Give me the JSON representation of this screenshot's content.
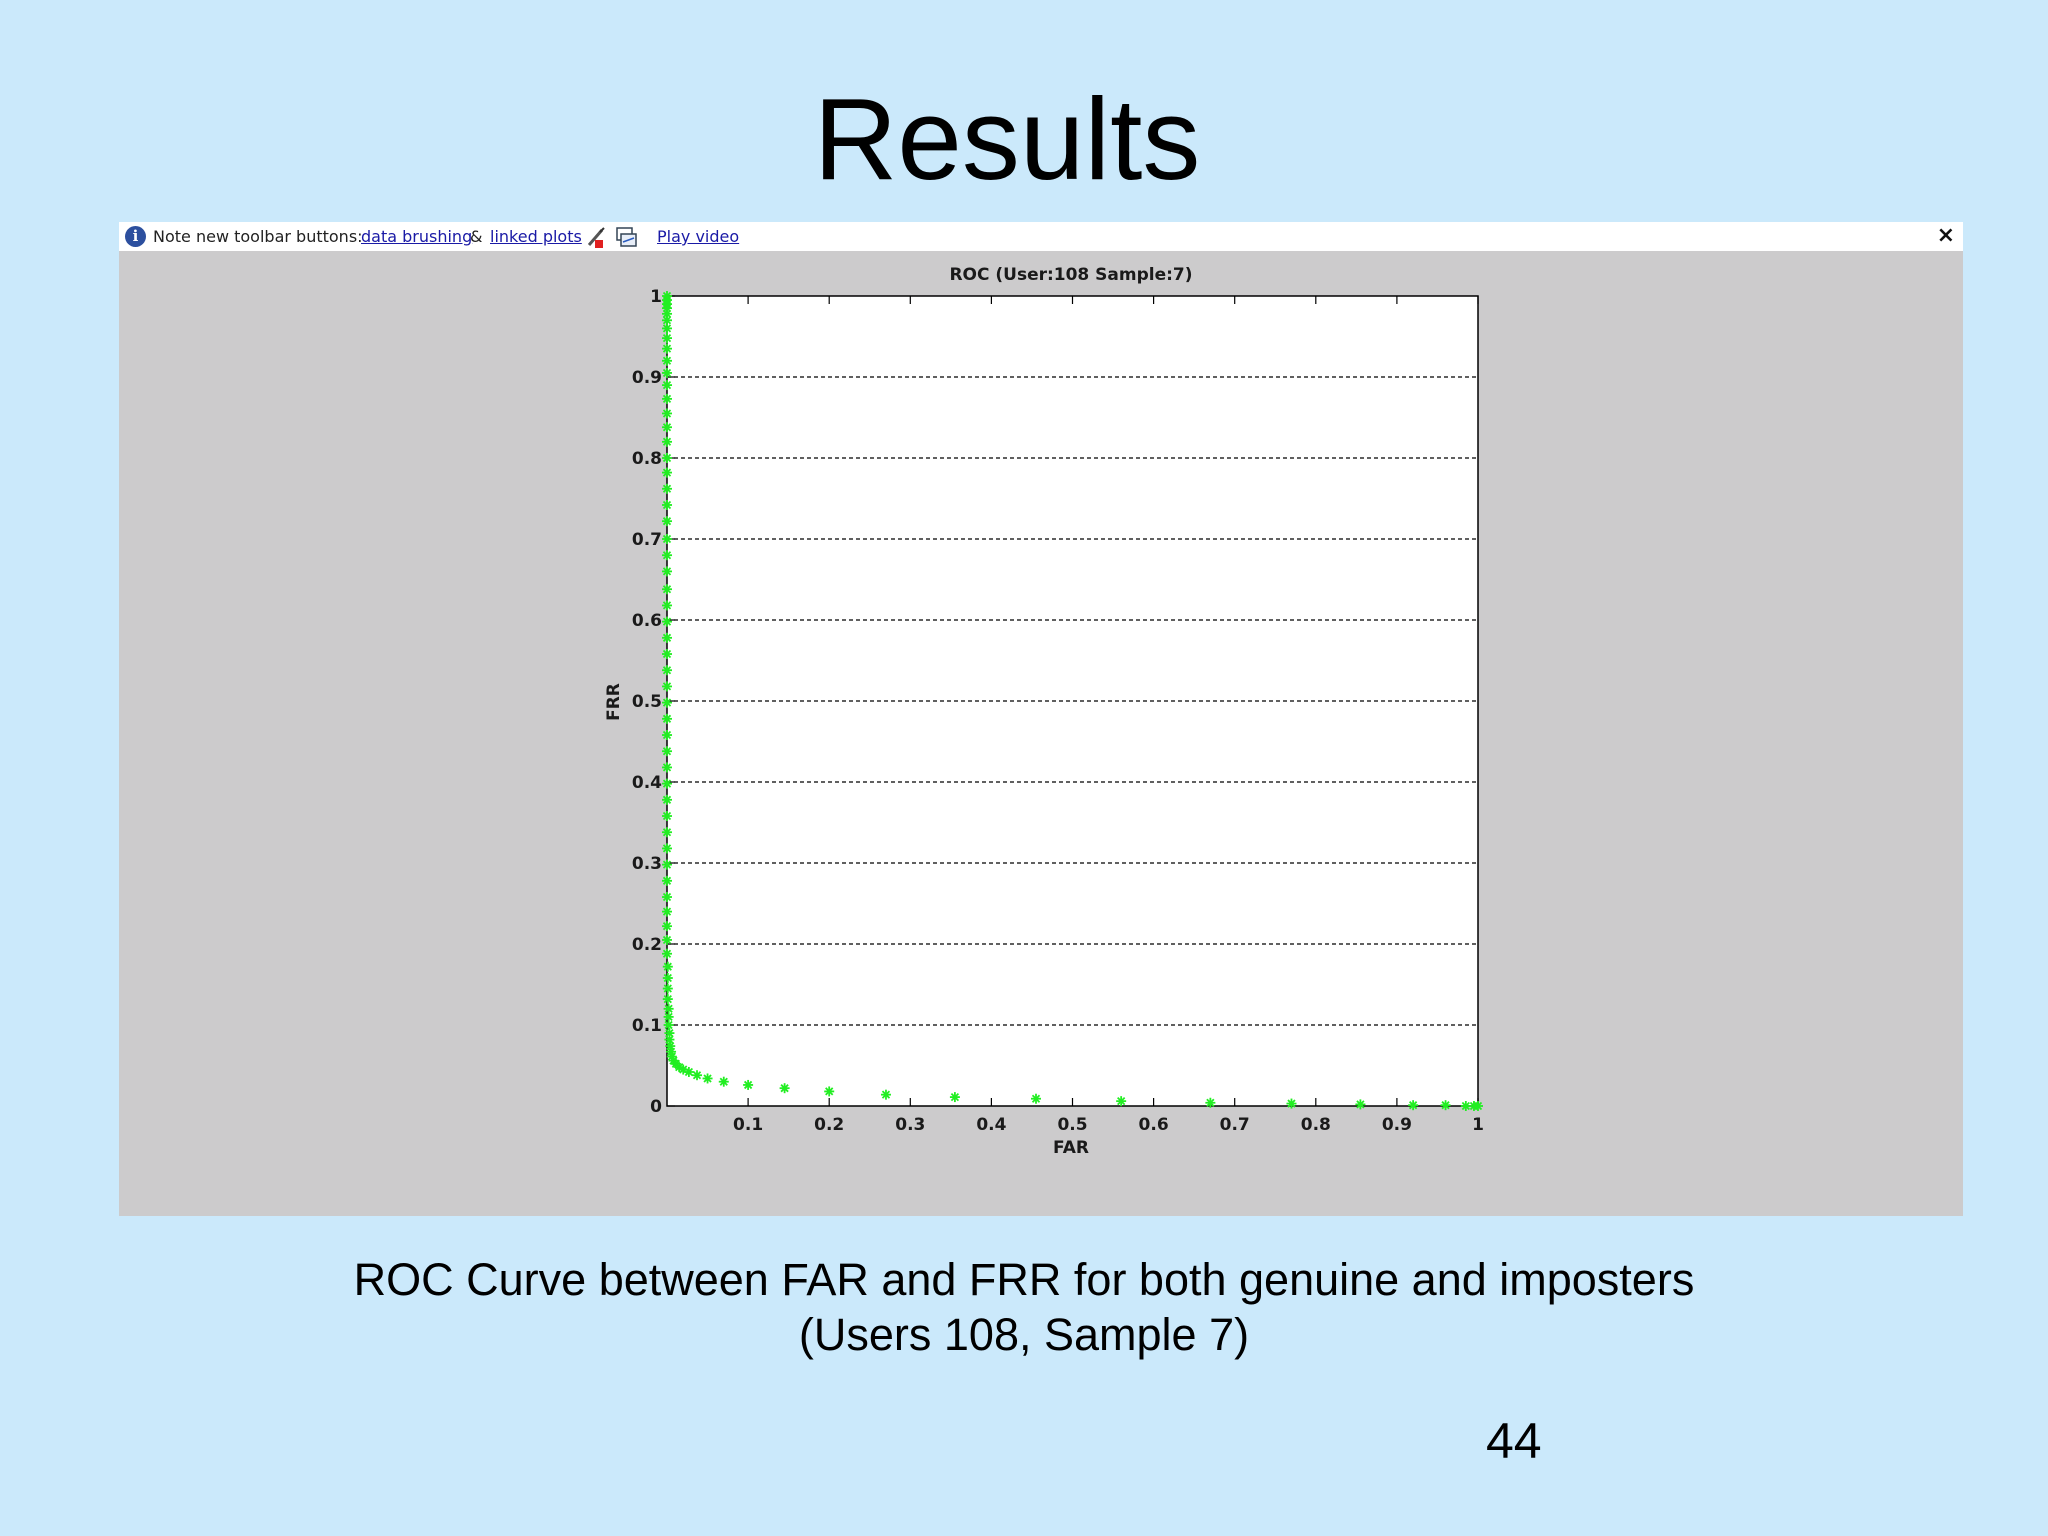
{
  "slide": {
    "title": "Results",
    "caption_line1": "ROC Curve between FAR and FRR for both genuine and imposters",
    "caption_line2": "(Users 108, Sample 7)",
    "page_number": "44"
  },
  "toolbar": {
    "note_text": "Note new toolbar buttons:",
    "link_data_brushing": "data brushing",
    "ampersand": "&",
    "link_linked_plots": "linked plots",
    "link_play_video": "Play video",
    "close_symbol": "×"
  },
  "colors": {
    "slide_background": "#cbe9fb",
    "figure_background": "#cccbcc",
    "marker": "#22ee22"
  },
  "chart_data": {
    "type": "scatter",
    "title": "ROC (User:108 Sample:7)",
    "xlabel": "FAR",
    "ylabel": "FRR",
    "xlim": [
      0,
      1
    ],
    "ylim": [
      0,
      1
    ],
    "xticks": [
      "0.1",
      "0.2",
      "0.3",
      "0.4",
      "0.5",
      "0.6",
      "0.7",
      "0.8",
      "0.9",
      "1"
    ],
    "yticks": [
      "0",
      "0.1",
      "0.2",
      "0.3",
      "0.4",
      "0.5",
      "0.6",
      "0.7",
      "0.8",
      "0.9",
      "1"
    ],
    "grid": "horizontal-dashed",
    "marker": "*",
    "series": [
      {
        "points": [
          [
            0.0,
            1.0
          ],
          [
            0.0,
            0.995
          ],
          [
            0.0,
            0.99
          ],
          [
            0.0,
            0.985
          ],
          [
            0.0,
            0.978
          ],
          [
            0.0,
            0.97
          ],
          [
            0.0,
            0.96
          ],
          [
            0.0,
            0.948
          ],
          [
            0.0,
            0.935
          ],
          [
            0.0,
            0.92
          ],
          [
            0.0,
            0.905
          ],
          [
            0.0,
            0.89
          ],
          [
            0.0,
            0.873
          ],
          [
            0.0,
            0.855
          ],
          [
            0.0,
            0.838
          ],
          [
            0.0,
            0.82
          ],
          [
            0.0,
            0.8
          ],
          [
            0.0,
            0.782
          ],
          [
            0.0,
            0.762
          ],
          [
            0.0,
            0.742
          ],
          [
            0.0,
            0.722
          ],
          [
            0.0,
            0.7
          ],
          [
            0.0,
            0.68
          ],
          [
            0.0,
            0.66
          ],
          [
            0.0,
            0.638
          ],
          [
            0.0,
            0.618
          ],
          [
            0.0,
            0.598
          ],
          [
            0.0,
            0.578
          ],
          [
            0.0,
            0.558
          ],
          [
            0.0,
            0.538
          ],
          [
            0.0,
            0.518
          ],
          [
            0.0,
            0.498
          ],
          [
            0.0,
            0.478
          ],
          [
            0.0,
            0.458
          ],
          [
            0.0,
            0.438
          ],
          [
            0.0,
            0.418
          ],
          [
            0.0,
            0.398
          ],
          [
            0.0,
            0.378
          ],
          [
            0.0,
            0.358
          ],
          [
            0.0,
            0.338
          ],
          [
            0.0,
            0.318
          ],
          [
            0.0,
            0.298
          ],
          [
            0.0,
            0.278
          ],
          [
            0.0,
            0.258
          ],
          [
            0.0,
            0.24
          ],
          [
            0.0,
            0.222
          ],
          [
            0.0,
            0.205
          ],
          [
            0.0,
            0.188
          ],
          [
            0.001,
            0.172
          ],
          [
            0.001,
            0.158
          ],
          [
            0.001,
            0.145
          ],
          [
            0.001,
            0.132
          ],
          [
            0.002,
            0.12
          ],
          [
            0.002,
            0.11
          ],
          [
            0.002,
            0.1
          ],
          [
            0.003,
            0.09
          ],
          [
            0.003,
            0.082
          ],
          [
            0.004,
            0.074
          ],
          [
            0.005,
            0.067
          ],
          [
            0.006,
            0.061
          ],
          [
            0.008,
            0.056
          ],
          [
            0.011,
            0.052
          ],
          [
            0.015,
            0.048
          ],
          [
            0.02,
            0.045
          ],
          [
            0.027,
            0.042
          ],
          [
            0.037,
            0.038
          ],
          [
            0.05,
            0.034
          ],
          [
            0.07,
            0.03
          ],
          [
            0.1,
            0.026
          ],
          [
            0.145,
            0.022
          ],
          [
            0.2,
            0.018
          ],
          [
            0.27,
            0.014
          ],
          [
            0.355,
            0.011
          ],
          [
            0.455,
            0.009
          ],
          [
            0.56,
            0.006
          ],
          [
            0.67,
            0.004
          ],
          [
            0.77,
            0.003
          ],
          [
            0.855,
            0.002
          ],
          [
            0.92,
            0.001
          ],
          [
            0.96,
            0.001
          ],
          [
            0.985,
            0.0
          ],
          [
            0.995,
            0.0
          ],
          [
            1.0,
            0.0
          ]
        ]
      }
    ]
  }
}
